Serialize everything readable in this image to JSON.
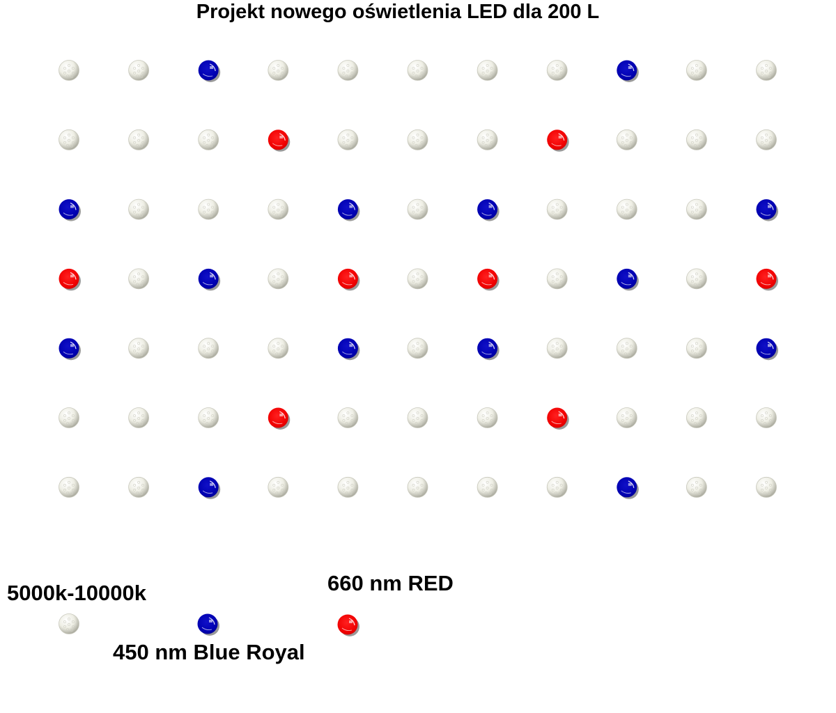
{
  "title": "Projekt  nowego oświetlenia LED dla 200 L",
  "colors": {
    "white": "#f2f2ea",
    "blue": "#0000b4",
    "red": "#ff0000"
  },
  "legend": {
    "white_label": "5000k-10000k",
    "blue_label": "450 nm Blue Royal",
    "red_label": "660 nm RED"
  },
  "grid": {
    "rows": 7,
    "cols": 11,
    "leds": [
      [
        "W",
        "W",
        "B",
        "W",
        "W",
        "W",
        "W",
        "W",
        "B",
        "W",
        "W"
      ],
      [
        "W",
        "W",
        "W",
        "R",
        "W",
        "W",
        "W",
        "R",
        "W",
        "W",
        "W"
      ],
      [
        "B",
        "W",
        "W",
        "W",
        "B",
        "W",
        "B",
        "W",
        "W",
        "W",
        "B"
      ],
      [
        "R",
        "W",
        "B",
        "W",
        "R",
        "W",
        "R",
        "W",
        "B",
        "W",
        "R"
      ],
      [
        "B",
        "W",
        "W",
        "W",
        "B",
        "W",
        "B",
        "W",
        "W",
        "W",
        "B"
      ],
      [
        "W",
        "W",
        "W",
        "R",
        "W",
        "W",
        "W",
        "R",
        "W",
        "W",
        "W"
      ],
      [
        "W",
        "W",
        "B",
        "W",
        "W",
        "W",
        "W",
        "W",
        "B",
        "W",
        "W"
      ]
    ]
  }
}
